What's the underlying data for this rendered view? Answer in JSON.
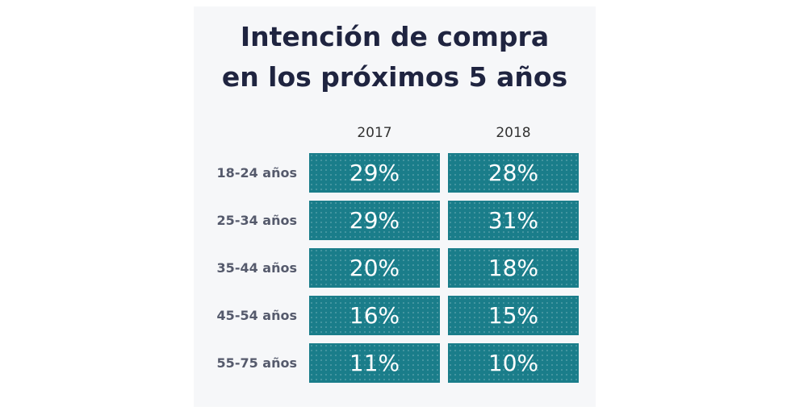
{
  "title": [
    "Intención de compra",
    "en los próximos 5 años"
  ],
  "table": {
    "columns": [
      "2017",
      "2018"
    ],
    "rows": [
      {
        "label": "18-24 años",
        "cells": [
          "29%",
          "28%"
        ]
      },
      {
        "label": "25-34 años",
        "cells": [
          "29%",
          "31%"
        ]
      },
      {
        "label": "35-44 años",
        "cells": [
          "20%",
          "18%"
        ]
      },
      {
        "label": "45-54 años",
        "cells": [
          "16%",
          "15%"
        ]
      },
      {
        "label": "55-75 años",
        "cells": [
          "11%",
          "10%"
        ]
      }
    ]
  }
}
